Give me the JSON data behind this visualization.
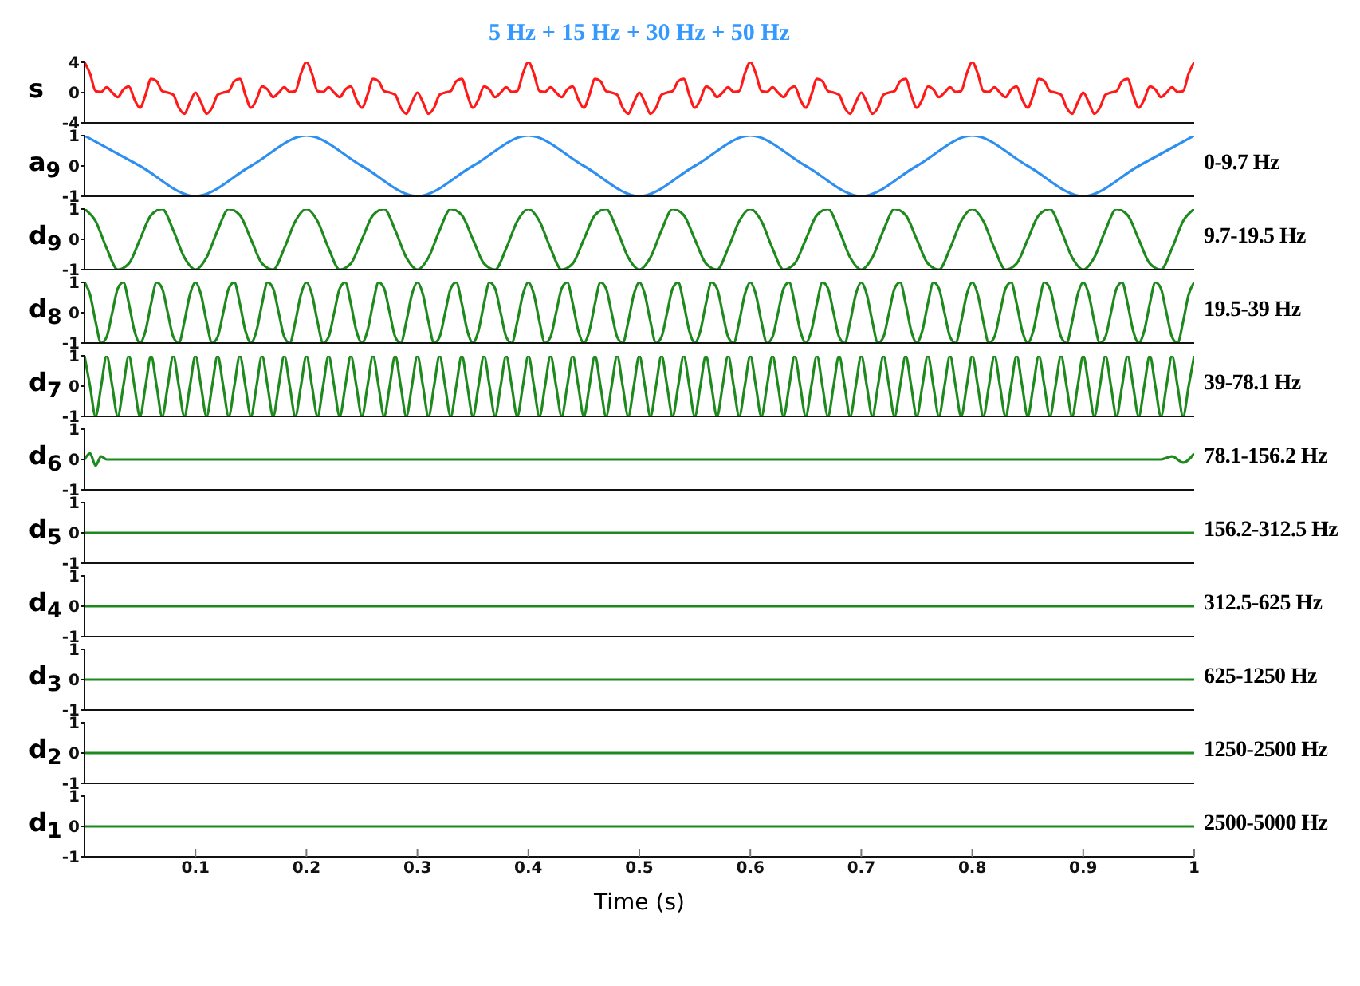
{
  "chart_data": [
    {
      "type": "line",
      "title": "5 Hz + 15 Hz + 30 Hz + 50 Hz",
      "ylabel": "s",
      "color": "#ff1a1a",
      "xlim": [
        0,
        1
      ],
      "ylim": [
        -4,
        4
      ],
      "yticks": [
        -4,
        0,
        4
      ],
      "xticks": [
        0.1,
        0.2,
        0.3,
        0.4,
        0.5,
        0.6,
        0.7,
        0.8,
        0.9,
        1
      ],
      "tick_labels": "y",
      "x": [
        0,
        0.005,
        0.01,
        0.015,
        0.02,
        0.025,
        0.03,
        0.035,
        0.04,
        0.045,
        0.05,
        0.055,
        0.06,
        0.065,
        0.07,
        0.075,
        0.08,
        0.085,
        0.09,
        0.095,
        0.1,
        0.105,
        0.11,
        0.115,
        0.12,
        0.125,
        0.13,
        0.135,
        0.14,
        0.145,
        0.15,
        0.155,
        0.16,
        0.165,
        0.17,
        0.175,
        0.18,
        0.185,
        0.19,
        0.195,
        0.2,
        0.205,
        0.21,
        0.215,
        0.22,
        0.225,
        0.23,
        0.235,
        0.24,
        0.245,
        0.25,
        0.255,
        0.26,
        0.265,
        0.27,
        0.275,
        0.28,
        0.285,
        0.29,
        0.295,
        0.3,
        0.305,
        0.31,
        0.315,
        0.32,
        0.325,
        0.33,
        0.335,
        0.34,
        0.345,
        0.35,
        0.355,
        0.36,
        0.365,
        0.37,
        0.375,
        0.38,
        0.385,
        0.39,
        0.395,
        0.4,
        0.405,
        0.41,
        0.415,
        0.42,
        0.425,
        0.43,
        0.435,
        0.44,
        0.445,
        0.45,
        0.455,
        0.46,
        0.465,
        0.47,
        0.475,
        0.48,
        0.485,
        0.49,
        0.495,
        0.5,
        0.505,
        0.51,
        0.515,
        0.52,
        0.525,
        0.53,
        0.535,
        0.54,
        0.545,
        0.55,
        0.555,
        0.56,
        0.565,
        0.57,
        0.575,
        0.58,
        0.585,
        0.59,
        0.595,
        0.6,
        0.605,
        0.61,
        0.615,
        0.62,
        0.625,
        0.63,
        0.635,
        0.64,
        0.645,
        0.65,
        0.655,
        0.66,
        0.665,
        0.67,
        0.675,
        0.68,
        0.685,
        0.69,
        0.695,
        0.7,
        0.705,
        0.71,
        0.715,
        0.72,
        0.725,
        0.73,
        0.735,
        0.74,
        0.745,
        0.75,
        0.755,
        0.76,
        0.765,
        0.77,
        0.775,
        0.78,
        0.785,
        0.79,
        0.795,
        0.8,
        0.805,
        0.81,
        0.815,
        0.82,
        0.825,
        0.83,
        0.835,
        0.84,
        0.845,
        0.85,
        0.855,
        0.86,
        0.865,
        0.87,
        0.875,
        0.88,
        0.885,
        0.89,
        0.895,
        0.9,
        0.905,
        0.91,
        0.915,
        0.92,
        0.925,
        0.93,
        0.935,
        0.94,
        0.945,
        0.95,
        0.955,
        0.96,
        0.965,
        0.97,
        0.975,
        0.98,
        0.985,
        0.99,
        0.995,
        1
      ],
      "values": [
        4,
        2.5,
        0.2,
        0.1,
        0.7,
        0,
        -0.6,
        0.4,
        0.8,
        -0.9,
        -2,
        -0.3,
        1.8,
        1.5,
        0.2,
        0,
        -0.3,
        -2,
        -2.8,
        -1.3,
        0,
        -1.3,
        -2.8,
        -2,
        -0.3,
        0,
        0.2,
        1.5,
        1.8,
        -0.3,
        -2,
        -0.9,
        0.8,
        0.4,
        -0.6,
        0,
        0.7,
        0.1,
        0.2,
        2.5,
        4,
        2.5,
        0.2,
        0.1,
        0.7,
        0,
        -0.6,
        0.4,
        0.8,
        -0.9,
        -2,
        -0.3,
        1.8,
        1.5,
        0.2,
        0,
        -0.3,
        -2,
        -2.8,
        -1.3,
        0,
        -1.3,
        -2.8,
        -2,
        -0.3,
        0,
        0.2,
        1.5,
        1.8,
        -0.3,
        -2,
        -0.9,
        0.8,
        0.4,
        -0.6,
        0,
        0.7,
        0.1,
        0.2,
        2.5,
        4,
        2.5,
        0.2,
        0.1,
        0.7,
        0,
        -0.6,
        0.4,
        0.8,
        -0.9,
        -2,
        -0.3,
        1.8,
        1.5,
        0.2,
        0,
        -0.3,
        -2,
        -2.8,
        -1.3,
        0,
        -1.3,
        -2.8,
        -2,
        -0.3,
        0,
        0.2,
        1.5,
        1.8,
        -0.3,
        -2,
        -0.9,
        0.8,
        0.4,
        -0.6,
        0,
        0.7,
        0.1,
        0.2,
        2.5,
        4,
        2.5,
        0.2,
        0.1,
        0.7,
        0,
        -0.6,
        0.4,
        0.8,
        -0.9,
        -2,
        -0.3,
        1.8,
        1.5,
        0.2,
        0,
        -0.3,
        -2,
        -2.8,
        -1.3,
        0,
        -1.3,
        -2.8,
        -2,
        -0.3,
        0,
        0.2,
        1.5,
        1.8,
        -0.3,
        -2,
        -0.9,
        0.8,
        0.4,
        -0.6,
        0,
        0.7,
        0.1,
        0.2,
        2.5,
        4,
        2.5,
        0.2,
        0.1,
        0.7,
        0,
        -0.6,
        0.4,
        0.8,
        -0.9,
        -2,
        -0.3,
        1.8,
        1.5,
        0.2,
        0,
        -0.3,
        -2,
        -2.8,
        -1.3,
        0,
        -1.3,
        -2.8,
        -2,
        -0.3,
        0,
        0.2,
        1.5,
        1.8,
        -0.3,
        -2,
        -0.9,
        0.8,
        0.4,
        -0.6,
        0,
        0.7,
        0.1,
        0.2,
        2.5,
        4
      ]
    },
    {
      "type": "line",
      "ylabel": "a$_{9}$",
      "annotations": [
        "0-9.7 Hz"
      ],
      "color": "#2e8ff0",
      "xlim": [
        0,
        1
      ],
      "ylim": [
        -1,
        1
      ],
      "yticks": [
        -1,
        0,
        1
      ],
      "xticks": [
        0.1,
        0.2,
        0.3,
        0.4,
        0.5,
        0.6,
        0.7,
        0.8,
        0.9,
        1
      ],
      "tick_labels": "y",
      "x": [
        0,
        0.05,
        0.1,
        0.15,
        0.2,
        0.25,
        0.3,
        0.35,
        0.4,
        0.45,
        0.5,
        0.55,
        0.6,
        0.65,
        0.7,
        0.75,
        0.8,
        0.85,
        0.9,
        0.95,
        1
      ],
      "values": [
        1,
        0,
        -1,
        0,
        1,
        0,
        -1,
        0,
        1,
        0,
        -1,
        0,
        1,
        0,
        -1,
        0,
        1,
        0,
        -1,
        0,
        1
      ]
    },
    {
      "type": "line",
      "ylabel": "d$_{9}$",
      "annotations": [
        "9.7-19.5 Hz"
      ],
      "color": "#1e8a1e",
      "xlim": [
        0,
        1
      ],
      "ylim": [
        -1,
        1
      ],
      "yticks": [
        -1,
        0,
        1
      ],
      "xticks": [
        0.1,
        0.2,
        0.3,
        0.4,
        0.5,
        0.6,
        0.7,
        0.8,
        0.9,
        1
      ],
      "tick_labels": "y",
      "x": [
        0,
        0.01,
        0.02,
        0.03,
        0.04,
        0.05,
        0.06,
        0.07,
        0.08,
        0.09,
        0.1,
        0.11,
        0.12,
        0.13,
        0.14,
        0.15,
        0.16,
        0.17,
        0.18,
        0.19,
        0.2,
        0.21,
        0.22,
        0.23,
        0.24,
        0.25,
        0.26,
        0.27,
        0.28,
        0.29,
        0.3,
        0.31,
        0.32,
        0.33,
        0.34,
        0.35,
        0.36,
        0.37,
        0.38,
        0.39,
        0.4,
        0.41,
        0.42,
        0.43,
        0.44,
        0.45,
        0.46,
        0.47,
        0.48,
        0.49,
        0.5,
        0.51,
        0.52,
        0.53,
        0.54,
        0.55,
        0.56,
        0.57,
        0.58,
        0.59,
        0.6,
        0.61,
        0.62,
        0.63,
        0.64,
        0.65,
        0.66,
        0.67,
        0.68,
        0.69,
        0.7,
        0.71,
        0.72,
        0.73,
        0.74,
        0.75,
        0.76,
        0.77,
        0.78,
        0.79,
        0.8,
        0.81,
        0.82,
        0.83,
        0.84,
        0.85,
        0.86,
        0.87,
        0.88,
        0.89,
        0.9,
        0.91,
        0.92,
        0.93,
        0.94,
        0.95,
        0.96,
        0.97,
        0.98,
        0.99,
        1
      ],
      "values": [
        1,
        0.6,
        -0.3,
        -1,
        -0.8,
        0,
        0.8,
        1,
        0.3,
        -0.6,
        -1,
        -0.6,
        0.3,
        1,
        0.8,
        0,
        -0.8,
        -1,
        -0.3,
        0.6,
        1,
        0.6,
        -0.3,
        -1,
        -0.8,
        0,
        0.8,
        1,
        0.3,
        -0.6,
        -1,
        -0.6,
        0.3,
        1,
        0.8,
        0,
        -0.8,
        -1,
        -0.3,
        0.6,
        1,
        0.6,
        -0.3,
        -1,
        -0.8,
        0,
        0.8,
        1,
        0.3,
        -0.6,
        -1,
        -0.6,
        0.3,
        1,
        0.8,
        0,
        -0.8,
        -1,
        -0.3,
        0.6,
        1,
        0.6,
        -0.3,
        -1,
        -0.8,
        0,
        0.8,
        1,
        0.3,
        -0.6,
        -1,
        -0.6,
        0.3,
        1,
        0.8,
        0,
        -0.8,
        -1,
        -0.3,
        0.6,
        1,
        0.6,
        -0.3,
        -1,
        -0.8,
        0,
        0.8,
        1,
        0.3,
        -0.6,
        -1,
        -0.6,
        0.3,
        1,
        0.8,
        0,
        -0.8,
        -1,
        -0.3,
        0.6,
        1
      ]
    },
    {
      "type": "line",
      "ylabel": "d$_{8}$",
      "annotations": [
        "19.5-39 Hz"
      ],
      "color": "#1e8a1e",
      "xlim": [
        0,
        1
      ],
      "ylim": [
        -1,
        1
      ],
      "yticks": [
        -1,
        0,
        1
      ],
      "xticks": [
        0.1,
        0.2,
        0.3,
        0.4,
        0.5,
        0.6,
        0.7,
        0.8,
        0.9,
        1
      ],
      "tick_labels": "y",
      "x": [
        0,
        0.005,
        0.01,
        0.015,
        0.02,
        0.025,
        0.03,
        0.035,
        0.04,
        0.045,
        0.05,
        0.055,
        0.06,
        0.065,
        0.07,
        0.075,
        0.08,
        0.085,
        0.09,
        0.095,
        0.1,
        0.105,
        0.11,
        0.115,
        0.12,
        0.125,
        0.13,
        0.135,
        0.14,
        0.145,
        0.15,
        0.155,
        0.16,
        0.165,
        0.17,
        0.175,
        0.18,
        0.185,
        0.19,
        0.195,
        0.2,
        0.205,
        0.21,
        0.215,
        0.22,
        0.225,
        0.23,
        0.235,
        0.24,
        0.245,
        0.25,
        0.255,
        0.26,
        0.265,
        0.27,
        0.275,
        0.28,
        0.285,
        0.29,
        0.295,
        0.3,
        0.305,
        0.31,
        0.315,
        0.32,
        0.325,
        0.33,
        0.335,
        0.34,
        0.345,
        0.35,
        0.355,
        0.36,
        0.365,
        0.37,
        0.375,
        0.38,
        0.385,
        0.39,
        0.395,
        0.4,
        0.405,
        0.41,
        0.415,
        0.42,
        0.425,
        0.43,
        0.435,
        0.44,
        0.445,
        0.45,
        0.455,
        0.46,
        0.465,
        0.47,
        0.475,
        0.48,
        0.485,
        0.49,
        0.495,
        0.5,
        0.505,
        0.51,
        0.515,
        0.52,
        0.525,
        0.53,
        0.535,
        0.54,
        0.545,
        0.55,
        0.555,
        0.56,
        0.565,
        0.57,
        0.575,
        0.58,
        0.585,
        0.59,
        0.595,
        0.6,
        0.605,
        0.61,
        0.615,
        0.62,
        0.625,
        0.63,
        0.635,
        0.64,
        0.645,
        0.65,
        0.655,
        0.66,
        0.665,
        0.67,
        0.675,
        0.68,
        0.685,
        0.69,
        0.695,
        0.7,
        0.705,
        0.71,
        0.715,
        0.72,
        0.725,
        0.73,
        0.735,
        0.74,
        0.745,
        0.75,
        0.755,
        0.76,
        0.765,
        0.77,
        0.775,
        0.78,
        0.785,
        0.79,
        0.795,
        0.8,
        0.805,
        0.81,
        0.815,
        0.82,
        0.825,
        0.83,
        0.835,
        0.84,
        0.845,
        0.85,
        0.855,
        0.86,
        0.865,
        0.87,
        0.875,
        0.88,
        0.885,
        0.89,
        0.895,
        0.9,
        0.905,
        0.91,
        0.915,
        0.92,
        0.925,
        0.93,
        0.935,
        0.94,
        0.945,
        0.95,
        0.955,
        0.96,
        0.965,
        0.97,
        0.975,
        0.98,
        0.985,
        0.99,
        0.995,
        1
      ],
      "values": [
        1,
        0.6,
        -0.3,
        -1,
        -0.8,
        0,
        0.8,
        1,
        0.3,
        -0.6,
        -1,
        -0.6,
        0.3,
        1,
        0.8,
        0,
        -0.8,
        -1,
        -0.3,
        0.6,
        1,
        0.6,
        -0.3,
        -1,
        -0.8,
        0,
        0.8,
        1,
        0.3,
        -0.6,
        -1,
        -0.6,
        0.3,
        1,
        0.8,
        0,
        -0.8,
        -1,
        -0.3,
        0.6,
        1,
        0.6,
        -0.3,
        -1,
        -0.8,
        0,
        0.8,
        1,
        0.3,
        -0.6,
        -1,
        -0.6,
        0.3,
        1,
        0.8,
        0,
        -0.8,
        -1,
        -0.3,
        0.6,
        1,
        0.6,
        -0.3,
        -1,
        -0.8,
        0,
        0.8,
        1,
        0.3,
        -0.6,
        -1,
        -0.6,
        0.3,
        1,
        0.8,
        0,
        -0.8,
        -1,
        -0.3,
        0.6,
        1,
        0.6,
        -0.3,
        -1,
        -0.8,
        0,
        0.8,
        1,
        0.3,
        -0.6,
        -1,
        -0.6,
        0.3,
        1,
        0.8,
        0,
        -0.8,
        -1,
        -0.3,
        0.6,
        1,
        0.6,
        -0.3,
        -1,
        -0.8,
        0,
        0.8,
        1,
        0.3,
        -0.6,
        -1,
        -0.6,
        0.3,
        1,
        0.8,
        0,
        -0.8,
        -1,
        -0.3,
        0.6,
        1,
        0.6,
        -0.3,
        -1,
        -0.8,
        0,
        0.8,
        1,
        0.3,
        -0.6,
        -1,
        -0.6,
        0.3,
        1,
        0.8,
        0,
        -0.8,
        -1,
        -0.3,
        0.6,
        1,
        0.6,
        -0.3,
        -1,
        -0.8,
        0,
        0.8,
        1,
        0.3,
        -0.6,
        -1,
        -0.6,
        0.3,
        1,
        0.8,
        0,
        -0.8,
        -1,
        -0.3,
        0.6,
        1,
        0.6,
        -0.3,
        -1,
        -0.8,
        0,
        0.8,
        1,
        0.3,
        -0.6,
        -1,
        -0.6,
        0.3,
        1,
        0.8,
        0,
        -0.8,
        -1,
        -0.3,
        0.6,
        1,
        0.6,
        -0.3,
        -1,
        -0.8,
        0,
        0.8,
        1,
        0.3,
        -0.6,
        -1,
        -0.6,
        0.3,
        1,
        0.8,
        0,
        -0.8,
        -1,
        -0.3,
        0.6,
        1
      ]
    },
    {
      "type": "line",
      "ylabel": "d$_{7}$",
      "annotations": [
        "39-78.1 Hz"
      ],
      "color": "#1e8a1e",
      "xlim": [
        0,
        1
      ],
      "ylim": [
        -1,
        1
      ],
      "yticks": [
        -1,
        0,
        1
      ],
      "xticks": [
        0.1,
        0.2,
        0.3,
        0.4,
        0.5,
        0.6,
        0.7,
        0.8,
        0.9,
        1
      ],
      "tick_labels": "y",
      "x": [
        0,
        0.005,
        0.01,
        0.015,
        0.02,
        0.025,
        0.03,
        0.035,
        0.04,
        0.045,
        0.05,
        0.055,
        0.06,
        0.065,
        0.07,
        0.075,
        0.08,
        0.085,
        0.09,
        0.095,
        0.1,
        0.105,
        0.11,
        0.115,
        0.12,
        0.125,
        0.13,
        0.135,
        0.14,
        0.145,
        0.15,
        0.155,
        0.16,
        0.165,
        0.17,
        0.175,
        0.18,
        0.185,
        0.19,
        0.195,
        0.2,
        0.205,
        0.21,
        0.215,
        0.22,
        0.225,
        0.23,
        0.235,
        0.24,
        0.245,
        0.25,
        0.255,
        0.26,
        0.265,
        0.27,
        0.275,
        0.28,
        0.285,
        0.29,
        0.295,
        0.3,
        0.305,
        0.31,
        0.315,
        0.32,
        0.325,
        0.33,
        0.335,
        0.34,
        0.345,
        0.35,
        0.355,
        0.36,
        0.365,
        0.37,
        0.375,
        0.38,
        0.385,
        0.39,
        0.395,
        0.4,
        0.405,
        0.41,
        0.415,
        0.42,
        0.425,
        0.43,
        0.435,
        0.44,
        0.445,
        0.45,
        0.455,
        0.46,
        0.465,
        0.47,
        0.475,
        0.48,
        0.485,
        0.49,
        0.495,
        0.5,
        0.505,
        0.51,
        0.515,
        0.52,
        0.525,
        0.53,
        0.535,
        0.54,
        0.545,
        0.55,
        0.555,
        0.56,
        0.565,
        0.57,
        0.575,
        0.58,
        0.585,
        0.59,
        0.595,
        0.6,
        0.605,
        0.61,
        0.615,
        0.62,
        0.625,
        0.63,
        0.635,
        0.64,
        0.645,
        0.65,
        0.655,
        0.66,
        0.665,
        0.67,
        0.675,
        0.68,
        0.685,
        0.69,
        0.695,
        0.7,
        0.705,
        0.71,
        0.715,
        0.72,
        0.725,
        0.73,
        0.735,
        0.74,
        0.745,
        0.75,
        0.755,
        0.76,
        0.765,
        0.77,
        0.775,
        0.78,
        0.785,
        0.79,
        0.795,
        0.8,
        0.805,
        0.81,
        0.815,
        0.82,
        0.825,
        0.83,
        0.835,
        0.84,
        0.845,
        0.85,
        0.855,
        0.86,
        0.865,
        0.87,
        0.875,
        0.88,
        0.885,
        0.89,
        0.895,
        0.9,
        0.905,
        0.91,
        0.915,
        0.92,
        0.925,
        0.93,
        0.935,
        0.94,
        0.945,
        0.95,
        0.955,
        0.96,
        0.965,
        0.97,
        0.975,
        0.98,
        0.985,
        0.99,
        0.995,
        1
      ],
      "values": [
        1,
        0,
        -1,
        0,
        1,
        0,
        -1,
        0,
        1,
        0,
        -1,
        0,
        1,
        0,
        -1,
        0,
        1,
        0,
        -1,
        0,
        1,
        0,
        -1,
        0,
        1,
        0,
        -1,
        0,
        1,
        0,
        -1,
        0,
        1,
        0,
        -1,
        0,
        1,
        0,
        -1,
        0,
        1,
        0,
        -1,
        0,
        1,
        0,
        -1,
        0,
        1,
        0,
        -1,
        0,
        1,
        0,
        -1,
        0,
        1,
        0,
        -1,
        0,
        1,
        0,
        -1,
        0,
        1,
        0,
        -1,
        0,
        1,
        0,
        -1,
        0,
        1,
        0,
        -1,
        0,
        1,
        0,
        -1,
        0,
        1,
        0,
        -1,
        0,
        1,
        0,
        -1,
        0,
        1,
        0,
        -1,
        0,
        1,
        0,
        -1,
        0,
        1,
        0,
        -1,
        0,
        1,
        0,
        -1,
        0,
        1,
        0,
        -1,
        0,
        1,
        0,
        -1,
        0,
        1,
        0,
        -1,
        0,
        1,
        0,
        -1,
        0,
        1,
        0,
        -1,
        0,
        1,
        0,
        -1,
        0,
        1,
        0,
        -1,
        0,
        1,
        0,
        -1,
        0,
        1,
        0,
        -1,
        0,
        1,
        0,
        -1,
        0,
        1,
        0,
        -1,
        0,
        1,
        0,
        -1,
        0,
        1,
        0,
        -1,
        0,
        1,
        0,
        -1,
        0,
        1,
        0,
        -1,
        0,
        1,
        0,
        -1,
        0,
        1,
        0,
        -1,
        0,
        1,
        0,
        -1,
        0,
        1,
        0,
        -1,
        0,
        1,
        0,
        -1,
        0,
        1,
        0,
        -1,
        0,
        1,
        0,
        -1,
        0,
        1,
        0,
        -1,
        0,
        1,
        0,
        -1,
        0,
        1
      ]
    },
    {
      "type": "line",
      "ylabel": "d$_{6}$",
      "annotations": [
        "78.1-156.2 Hz"
      ],
      "color": "#1e8a1e",
      "xlim": [
        0,
        1
      ],
      "ylim": [
        -1,
        1
      ],
      "yticks": [
        -1,
        0,
        1
      ],
      "xticks": [
        0.1,
        0.2,
        0.3,
        0.4,
        0.5,
        0.6,
        0.7,
        0.8,
        0.9,
        1
      ],
      "tick_labels": "y",
      "x": [
        0,
        0.005,
        0.01,
        0.015,
        0.02,
        0.03,
        0.5,
        0.97,
        0.98,
        0.99,
        1
      ],
      "values": [
        0,
        0.2,
        -0.2,
        0.1,
        0,
        0,
        0,
        0,
        0.1,
        -0.1,
        0.2
      ]
    },
    {
      "type": "line",
      "ylabel": "d$_{5}$",
      "annotations": [
        "156.2-312.5 Hz"
      ],
      "color": "#1e8a1e",
      "xlim": [
        0,
        1
      ],
      "ylim": [
        -1,
        1
      ],
      "yticks": [
        -1,
        0,
        1
      ],
      "xticks": [
        0.1,
        0.2,
        0.3,
        0.4,
        0.5,
        0.6,
        0.7,
        0.8,
        0.9,
        1
      ],
      "tick_labels": "y",
      "x": [
        0,
        1
      ],
      "values": [
        0,
        0
      ]
    },
    {
      "type": "line",
      "ylabel": "d$_{4}$",
      "annotations": [
        "312.5-625 Hz"
      ],
      "color": "#1e8a1e",
      "xlim": [
        0,
        1
      ],
      "ylim": [
        -1,
        1
      ],
      "yticks": [
        -1,
        0,
        1
      ],
      "xticks": [
        0.1,
        0.2,
        0.3,
        0.4,
        0.5,
        0.6,
        0.7,
        0.8,
        0.9,
        1
      ],
      "tick_labels": "y",
      "x": [
        0,
        1
      ],
      "values": [
        0,
        0
      ]
    },
    {
      "type": "line",
      "ylabel": "d$_{3}$",
      "annotations": [
        "625-1250 Hz"
      ],
      "color": "#1e8a1e",
      "xlim": [
        0,
        1
      ],
      "ylim": [
        -1,
        1
      ],
      "yticks": [
        -1,
        0,
        1
      ],
      "xticks": [
        0.1,
        0.2,
        0.3,
        0.4,
        0.5,
        0.6,
        0.7,
        0.8,
        0.9,
        1
      ],
      "tick_labels": "y",
      "x": [
        0,
        1
      ],
      "values": [
        0,
        0
      ]
    },
    {
      "type": "line",
      "ylabel": "d$_{2}$",
      "annotations": [
        "1250-2500 Hz"
      ],
      "color": "#1e8a1e",
      "xlim": [
        0,
        1
      ],
      "ylim": [
        -1,
        1
      ],
      "yticks": [
        -1,
        0,
        1
      ],
      "xticks": [
        0.1,
        0.2,
        0.3,
        0.4,
        0.5,
        0.6,
        0.7,
        0.8,
        0.9,
        1
      ],
      "tick_labels": "y",
      "x": [
        0,
        1
      ],
      "values": [
        0,
        0
      ]
    },
    {
      "type": "line",
      "ylabel": "d$_{1}$",
      "xlabel": "Time (s)",
      "annotations": [
        "2500-5000 Hz"
      ],
      "color": "#1e8a1e",
      "xlim": [
        0,
        1
      ],
      "ylim": [
        -1,
        1
      ],
      "yticks": [
        -1,
        0,
        1
      ],
      "xticks": [
        0.1,
        0.2,
        0.3,
        0.4,
        0.5,
        0.6,
        0.7,
        0.8,
        0.9,
        1
      ],
      "x": [
        0,
        1
      ],
      "values": [
        0,
        0
      ]
    }
  ]
}
